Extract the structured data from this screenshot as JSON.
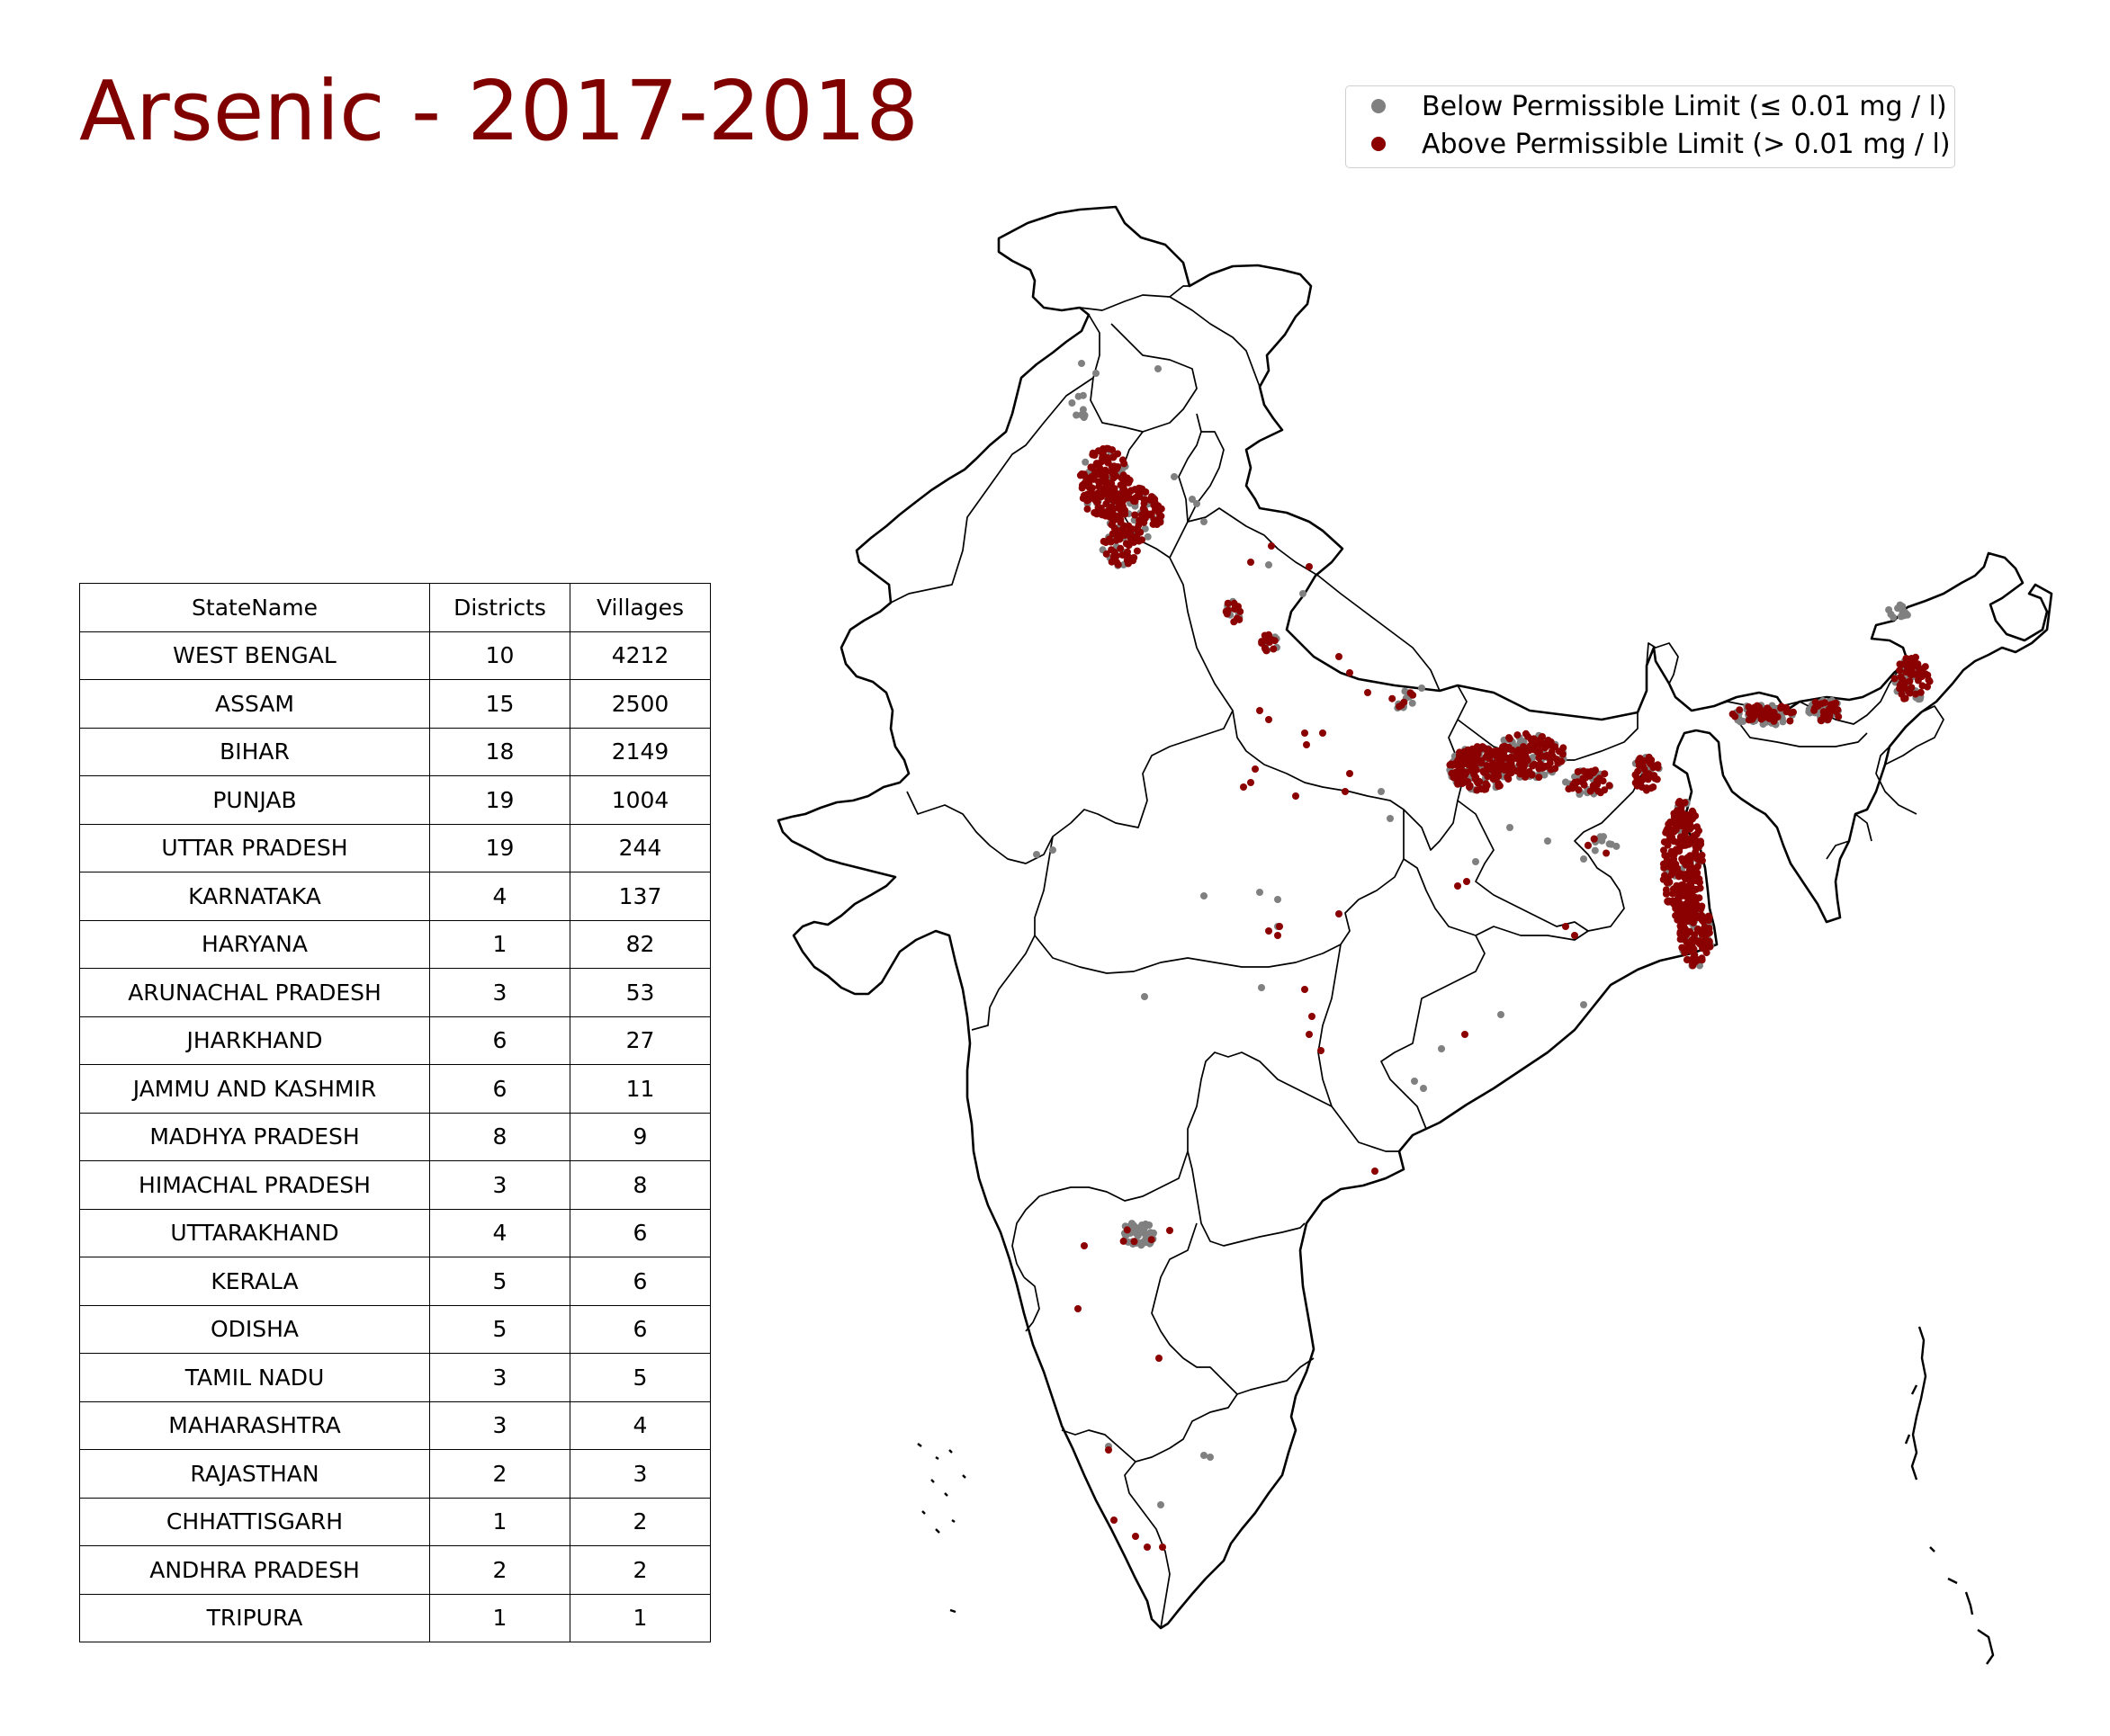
{
  "title": "Arsenic - 2017-2018",
  "colors": {
    "title": "#800000",
    "below": "#808080",
    "above": "#8b0000"
  },
  "legend": {
    "placement": "top-right",
    "items": [
      {
        "label": "Below Permissible Limit (≤ 0.01 mg / l)",
        "color": "#808080"
      },
      {
        "label": "Above Permissible Limit (> 0.01 mg / l)",
        "color": "#8b0000"
      }
    ]
  },
  "table": {
    "columns": [
      "StateName",
      "Districts",
      "Villages"
    ],
    "rows": [
      [
        "WEST BENGAL",
        "10",
        "4212"
      ],
      [
        "ASSAM",
        "15",
        "2500"
      ],
      [
        "BIHAR",
        "18",
        "2149"
      ],
      [
        "PUNJAB",
        "19",
        "1004"
      ],
      [
        "UTTAR PRADESH",
        "19",
        "244"
      ],
      [
        "KARNATAKA",
        "4",
        "137"
      ],
      [
        "HARYANA",
        "1",
        "82"
      ],
      [
        "ARUNACHAL PRADESH",
        "3",
        "53"
      ],
      [
        "JHARKHAND",
        "6",
        "27"
      ],
      [
        "JAMMU AND KASHMIR",
        "6",
        "11"
      ],
      [
        "MADHYA PRADESH",
        "8",
        "9"
      ],
      [
        "HIMACHAL PRADESH",
        "3",
        "8"
      ],
      [
        "UTTARAKHAND",
        "4",
        "6"
      ],
      [
        "KERALA",
        "5",
        "6"
      ],
      [
        "ODISHA",
        "5",
        "6"
      ],
      [
        "TAMIL NADU",
        "3",
        "5"
      ],
      [
        "MAHARASHTRA",
        "3",
        "4"
      ],
      [
        "RAJASTHAN",
        "2",
        "3"
      ],
      [
        "CHHATTISGARH",
        "1",
        "2"
      ],
      [
        "ANDHRA PRADESH",
        "2",
        "2"
      ],
      [
        "TRIPURA",
        "1",
        "1"
      ]
    ]
  }
}
